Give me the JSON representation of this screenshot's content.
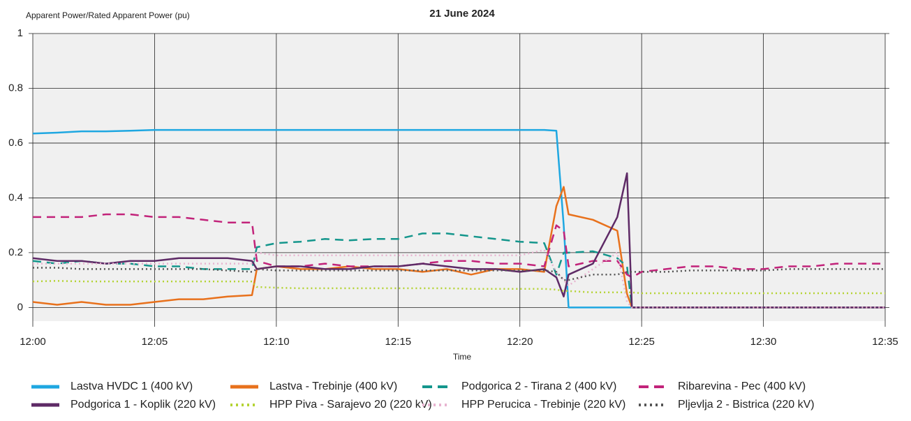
{
  "chart_data": {
    "type": "line",
    "title": "21 June 2024",
    "y_label": "Apparent Power/Rated Apparent Power (pu)",
    "x_label": "Time",
    "xlim": [
      0,
      35
    ],
    "xticks": [
      {
        "value": 0,
        "label": "12:00"
      },
      {
        "value": 5,
        "label": "12:05"
      },
      {
        "value": 10,
        "label": "12:10"
      },
      {
        "value": 15,
        "label": "12:15"
      },
      {
        "value": 20,
        "label": "12:20"
      },
      {
        "value": 25,
        "label": "12:25"
      },
      {
        "value": 30,
        "label": "12:30"
      },
      {
        "value": 35,
        "label": "12:35"
      }
    ],
    "ylim": [
      -0.05,
      1
    ],
    "yticks": [
      0,
      0.2,
      0.4,
      0.6,
      0.8,
      1
    ],
    "grid": true,
    "legend": "bottom",
    "x": [
      0,
      1,
      2,
      3,
      4,
      5,
      6,
      7,
      8,
      9,
      9.2,
      10,
      11,
      12,
      13,
      14,
      15,
      16,
      17,
      18,
      19,
      20,
      21,
      21.5,
      21.8,
      22,
      23,
      24,
      24.4,
      24.6,
      25,
      26,
      27,
      28,
      29,
      30,
      31,
      32,
      33,
      34,
      35
    ],
    "series": [
      {
        "name": "Lastva HVDC 1 (400 kV)",
        "color": "#1ea7e1",
        "style": "solid",
        "values": [
          0.635,
          0.638,
          0.643,
          0.643,
          0.645,
          0.648,
          0.648,
          0.648,
          0.648,
          0.648,
          0.648,
          0.648,
          0.648,
          0.648,
          0.648,
          0.648,
          0.648,
          0.648,
          0.648,
          0.648,
          0.648,
          0.648,
          0.648,
          0.645,
          0.3,
          0,
          0,
          0,
          0,
          0,
          0,
          0,
          0,
          0,
          0,
          0,
          0,
          0,
          0,
          0,
          0
        ]
      },
      {
        "name": "Lastva - Trebinje (400 kV)",
        "color": "#e8711c",
        "style": "solid",
        "values": [
          0.02,
          0.01,
          0.02,
          0.01,
          0.01,
          0.02,
          0.03,
          0.03,
          0.04,
          0.045,
          0.14,
          0.15,
          0.14,
          0.14,
          0.15,
          0.14,
          0.14,
          0.13,
          0.14,
          0.12,
          0.14,
          0.14,
          0.13,
          0.37,
          0.44,
          0.34,
          0.32,
          0.28,
          0.05,
          0,
          0,
          0,
          0,
          0,
          0,
          0,
          0,
          0,
          0,
          0,
          0
        ]
      },
      {
        "name": "Podgorica 2 - Tirana 2 (400 kV)",
        "color": "#14968c",
        "style": "dashed",
        "values": [
          0.17,
          0.16,
          0.17,
          0.16,
          0.16,
          0.15,
          0.15,
          0.14,
          0.14,
          0.14,
          0.22,
          0.235,
          0.24,
          0.25,
          0.245,
          0.25,
          0.25,
          0.27,
          0.27,
          0.26,
          0.25,
          0.24,
          0.235,
          0.12,
          0.2,
          0.2,
          0.205,
          0.18,
          0.15,
          0,
          0,
          0,
          0,
          0,
          0,
          0,
          0,
          0,
          0,
          0,
          0
        ]
      },
      {
        "name": "Ribarevina - Pec (400 kV)",
        "color": "#c2237a",
        "style": "dashed",
        "values": [
          0.33,
          0.33,
          0.33,
          0.34,
          0.34,
          0.33,
          0.33,
          0.32,
          0.31,
          0.31,
          0.17,
          0.15,
          0.15,
          0.16,
          0.15,
          0.15,
          0.15,
          0.16,
          0.17,
          0.17,
          0.16,
          0.16,
          0.15,
          0.3,
          0.28,
          0.15,
          0.17,
          0.17,
          0.12,
          0.11,
          0.13,
          0.14,
          0.15,
          0.15,
          0.14,
          0.14,
          0.15,
          0.15,
          0.16,
          0.16,
          0.16
        ]
      },
      {
        "name": "Podgorica 1 - Koplik (220 kV)",
        "color": "#5e2a66",
        "style": "solid",
        "values": [
          0.18,
          0.17,
          0.17,
          0.16,
          0.17,
          0.17,
          0.18,
          0.18,
          0.18,
          0.17,
          0.14,
          0.15,
          0.15,
          0.14,
          0.14,
          0.15,
          0.15,
          0.16,
          0.15,
          0.14,
          0.14,
          0.13,
          0.14,
          0.11,
          0.04,
          0.12,
          0.16,
          0.33,
          0.49,
          0,
          0,
          0,
          0,
          0,
          0,
          0,
          0,
          0,
          0,
          0,
          0
        ]
      },
      {
        "name": "HPP Piva - Sarajevo 20 (220 kV)",
        "color": "#b5d334",
        "style": "dotted",
        "values": [
          0.095,
          0.097,
          0.095,
          0.095,
          0.095,
          0.095,
          0.095,
          0.095,
          0.095,
          0.095,
          0.075,
          0.072,
          0.07,
          0.07,
          0.07,
          0.07,
          0.07,
          0.07,
          0.07,
          0.068,
          0.068,
          0.068,
          0.068,
          0.065,
          0.06,
          0.06,
          0.055,
          0.055,
          0.055,
          0.055,
          0.052,
          0.052,
          0.052,
          0.052,
          0.052,
          0.052,
          0.052,
          0.052,
          0.052,
          0.052,
          0.052
        ]
      },
      {
        "name": "HPP Perucica - Trebinje (220 kV)",
        "color": "#e8b4d0",
        "style": "dotted",
        "values": [
          0.16,
          0.16,
          0.16,
          0.16,
          0.16,
          0.16,
          0.16,
          0.16,
          0.16,
          0.16,
          0.2,
          0.19,
          0.19,
          0.19,
          0.19,
          0.19,
          0.19,
          0.19,
          0.19,
          0.19,
          0.19,
          0.19,
          0.21,
          0.13,
          0.1,
          0.08,
          0.14,
          0.2,
          0.02,
          0,
          0,
          0,
          0,
          0,
          0,
          0,
          0,
          0,
          0,
          0,
          0
        ]
      },
      {
        "name": "Pljevlja 2 - Bistrica (220 kV)",
        "color": "#555555",
        "style": "dotted",
        "values": [
          0.145,
          0.145,
          0.14,
          0.14,
          0.14,
          0.14,
          0.14,
          0.14,
          0.135,
          0.13,
          0.14,
          0.135,
          0.135,
          0.135,
          0.135,
          0.135,
          0.135,
          0.135,
          0.135,
          0.135,
          0.135,
          0.135,
          0.135,
          0.13,
          0.1,
          0.1,
          0.12,
          0.12,
          0.13,
          0.13,
          0.13,
          0.13,
          0.135,
          0.135,
          0.135,
          0.135,
          0.14,
          0.14,
          0.14,
          0.14,
          0.14
        ]
      }
    ]
  }
}
